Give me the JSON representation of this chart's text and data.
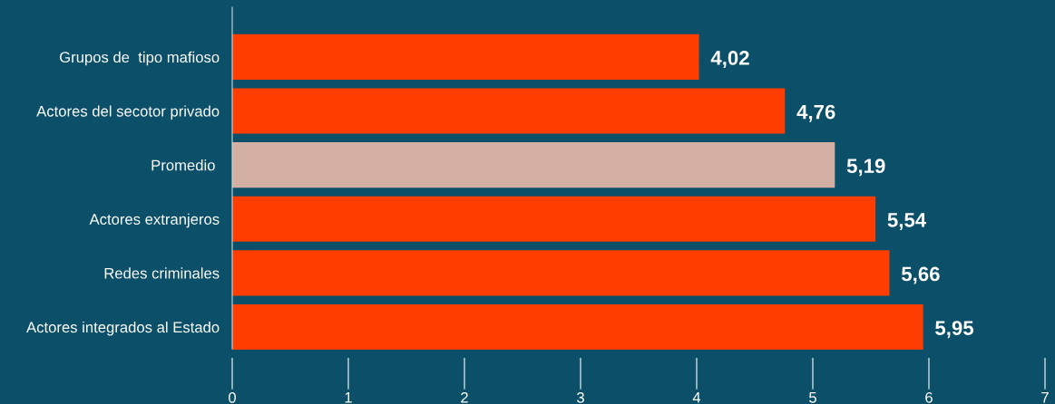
{
  "chart_data": {
    "type": "bar",
    "orientation": "horizontal",
    "categories": [
      "Grupos de  tipo mafioso",
      "Actores del secotor privado",
      "Promedio ",
      "Actores extranjeros",
      "Redes criminales",
      "Actores integrados al Estado"
    ],
    "values": [
      4.02,
      4.76,
      5.19,
      5.54,
      5.66,
      5.95
    ],
    "colors": [
      "#ff3d00",
      "#ff3d00",
      "#d4b0a4",
      "#ff3d00",
      "#ff3d00",
      "#ff3d00"
    ],
    "value_labels": [
      "4,02",
      "4,76",
      "5,19",
      "5,54",
      "5,66",
      "5,95"
    ],
    "xlim": [
      0,
      7
    ],
    "xticks": [
      0,
      1,
      2,
      3,
      4,
      5,
      6,
      7
    ],
    "grid": false,
    "legend": false
  }
}
